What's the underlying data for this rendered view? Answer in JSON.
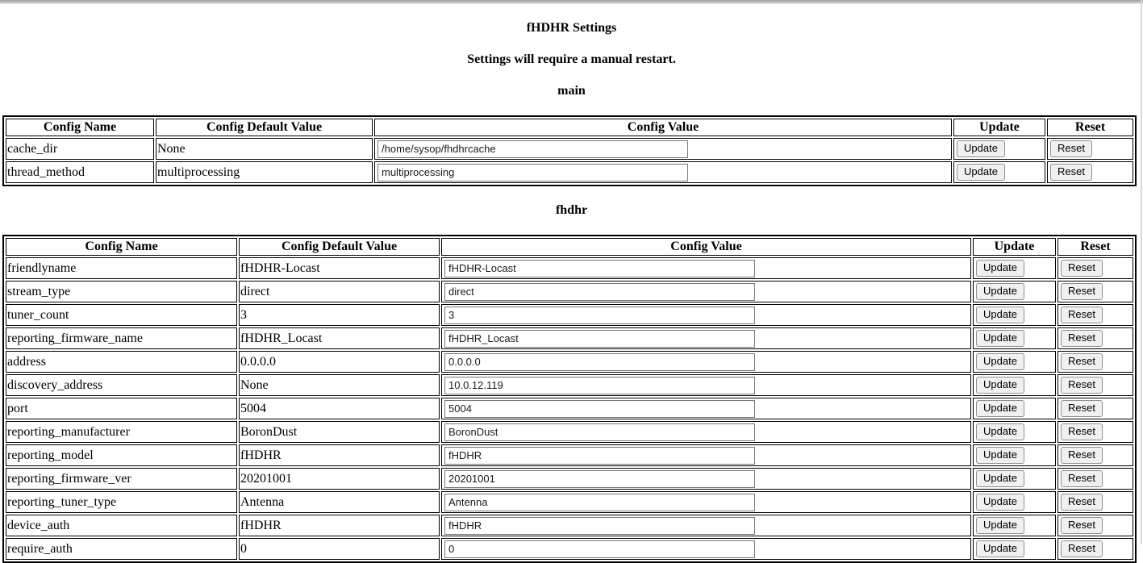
{
  "page": {
    "title": "fHDHR Settings",
    "subtitle": "Settings will require a manual restart."
  },
  "columns": [
    "Config Name",
    "Config Default Value",
    "Config Value",
    "Update",
    "Reset"
  ],
  "buttons": {
    "update": "Update",
    "reset": "Reset"
  },
  "sections": [
    {
      "heading": "main",
      "rows": [
        {
          "name": "cache_dir",
          "default": "None",
          "value": "/home/sysop/fhdhrcache"
        },
        {
          "name": "thread_method",
          "default": "multiprocessing",
          "value": "multiprocessing"
        }
      ]
    },
    {
      "heading": "fhdhr",
      "rows": [
        {
          "name": "friendlyname",
          "default": "fHDHR-Locast",
          "value": "fHDHR-Locast"
        },
        {
          "name": "stream_type",
          "default": "direct",
          "value": "direct"
        },
        {
          "name": "tuner_count",
          "default": "3",
          "value": "3"
        },
        {
          "name": "reporting_firmware_name",
          "default": "fHDHR_Locast",
          "value": "fHDHR_Locast"
        },
        {
          "name": "address",
          "default": "0.0.0.0",
          "value": "0.0.0.0"
        },
        {
          "name": "discovery_address",
          "default": "None",
          "value": "10.0.12.119"
        },
        {
          "name": "port",
          "default": "5004",
          "value": "5004"
        },
        {
          "name": "reporting_manufacturer",
          "default": "BoronDust",
          "value": "BoronDust"
        },
        {
          "name": "reporting_model",
          "default": "fHDHR",
          "value": "fHDHR"
        },
        {
          "name": "reporting_firmware_ver",
          "default": "20201001",
          "value": "20201001"
        },
        {
          "name": "reporting_tuner_type",
          "default": "Antenna",
          "value": "Antenna"
        },
        {
          "name": "device_auth",
          "default": "fHDHR",
          "value": "fHDHR"
        },
        {
          "name": "require_auth",
          "default": "0",
          "value": "0"
        }
      ]
    }
  ],
  "colors": {
    "table_border": "#000000",
    "button_bg": "#f0f0f0",
    "button_border": "#8f8f8f",
    "input_border": "#767676",
    "chrome_strip": "#a0a0a0",
    "window_edge": "#d9d9d9"
  }
}
